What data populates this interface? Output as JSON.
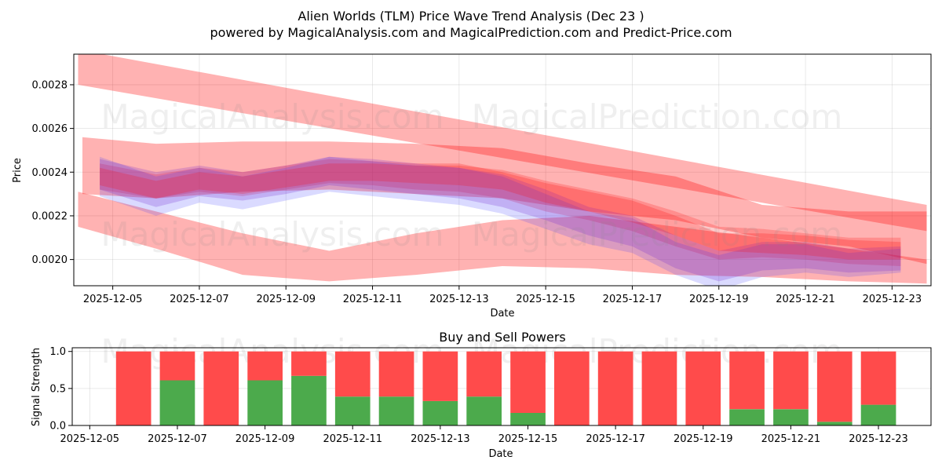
{
  "title_line1": "Alien Worlds (TLM) Price Wave Trend Analysis (Dec 23 )",
  "title_line2": "powered by MagicalAnalysis.com and MagicalPrediction.com and Predict-Price.com",
  "watermark_left": "MagicalAnalysis.com",
  "watermark_right": "MagicalPrediction.com",
  "colors": {
    "band_red": "#ff0000",
    "band_blue": "#3333ff",
    "band_purple": "#8833cc",
    "buy_green": "#4caa4c",
    "sell_red": "#ff4b4b"
  },
  "chart_data": [
    {
      "type": "area",
      "title": "Alien Worlds (TLM) Price Wave Trend Analysis (Dec 23 )",
      "xlabel": "Date",
      "ylabel": "Price",
      "xlim": [
        "2025-12-04.1",
        "2025-12-23.9"
      ],
      "ylim": [
        0.00188,
        0.00294
      ],
      "x_ticks": [
        "2025-12-05",
        "2025-12-07",
        "2025-12-09",
        "2025-12-11",
        "2025-12-13",
        "2025-12-15",
        "2025-12-17",
        "2025-12-19",
        "2025-12-21",
        "2025-12-23"
      ],
      "y_ticks": [
        0.002,
        0.0022,
        0.0024,
        0.0026,
        0.0028
      ],
      "y_tick_labels": [
        "0.0020",
        "0.0022",
        "0.0024",
        "0.0026",
        "0.0028"
      ],
      "grid": true,
      "series": [
        {
          "name": "upper trend band",
          "color": "red",
          "opacity": 0.3,
          "x": [
            4.2,
            23.8
          ],
          "upper": [
            0.00296,
            0.00225
          ],
          "lower": [
            0.0028,
            0.00213
          ]
        },
        {
          "name": "lower trend band",
          "color": "red",
          "opacity": 0.3,
          "x": [
            4.2,
            6,
            8,
            10,
            12,
            14,
            16,
            18,
            20,
            22,
            23.8
          ],
          "upper": [
            0.00231,
            0.00222,
            0.00212,
            0.00204,
            0.00212,
            0.00218,
            0.0022,
            0.00215,
            0.0021,
            0.00205,
            0.002
          ],
          "lower": [
            0.00215,
            0.00205,
            0.00193,
            0.0019,
            0.00193,
            0.00197,
            0.00196,
            0.00193,
            0.00192,
            0.0019,
            0.00189
          ]
        },
        {
          "name": "horizontal channel",
          "color": "red",
          "opacity": 0.3,
          "x": [
            4.3,
            6,
            8,
            10,
            12,
            14,
            16,
            18,
            20,
            22,
            23.8
          ],
          "upper": [
            0.00256,
            0.00253,
            0.00254,
            0.00254,
            0.00253,
            0.00251,
            0.00244,
            0.00238,
            0.00225,
            0.00222,
            0.00222
          ],
          "lower": [
            0.0023,
            0.00228,
            0.00231,
            0.00232,
            0.0023,
            0.00228,
            0.00222,
            0.00218,
            0.0021,
            0.00206,
            0.00198
          ]
        },
        {
          "name": "wave band 1",
          "color": "red",
          "opacity": 0.22,
          "x": [
            4.7,
            6,
            7,
            8,
            9,
            10,
            11,
            12,
            13,
            14,
            15,
            16,
            17,
            18,
            19,
            20,
            21,
            22,
            23.2
          ],
          "upper": [
            0.00244,
            0.00239,
            0.00242,
            0.0024,
            0.00243,
            0.00246,
            0.00245,
            0.00244,
            0.00244,
            0.0024,
            0.00235,
            0.00231,
            0.00227,
            0.0022,
            0.00212,
            0.00212,
            0.00211,
            0.00209,
            0.00208
          ],
          "lower": [
            0.00232,
            0.00228,
            0.00231,
            0.00229,
            0.00232,
            0.00235,
            0.00234,
            0.00232,
            0.00231,
            0.00228,
            0.00222,
            0.00218,
            0.00213,
            0.00206,
            0.002,
            0.00201,
            0.002,
            0.00198,
            0.00197
          ]
        },
        {
          "name": "wave band 2",
          "color": "purple",
          "opacity": 0.25,
          "x": [
            4.7,
            6,
            7,
            8,
            9,
            10,
            11,
            12,
            13,
            14,
            15,
            16,
            17,
            18,
            19,
            20,
            21,
            22,
            23.2
          ],
          "upper": [
            0.00246,
            0.0024,
            0.00243,
            0.0024,
            0.00243,
            0.00247,
            0.00246,
            0.00244,
            0.00242,
            0.00239,
            0.00232,
            0.00224,
            0.0022,
            0.00211,
            0.00204,
            0.00208,
            0.00208,
            0.00205,
            0.00206
          ],
          "lower": [
            0.00232,
            0.00224,
            0.00229,
            0.00227,
            0.0023,
            0.00234,
            0.00232,
            0.0023,
            0.00228,
            0.00224,
            0.00218,
            0.00211,
            0.00206,
            0.00196,
            0.0019,
            0.00195,
            0.00196,
            0.00194,
            0.00195
          ]
        },
        {
          "name": "wave band 3",
          "color": "blue",
          "opacity": 0.18,
          "x": [
            4.7,
            6,
            7,
            8,
            9,
            10,
            11,
            12,
            13,
            14,
            15,
            16,
            17,
            18,
            19,
            20,
            21,
            22,
            23.2
          ],
          "upper": [
            0.00247,
            0.00238,
            0.00242,
            0.00238,
            0.00242,
            0.00247,
            0.00245,
            0.00243,
            0.00242,
            0.00238,
            0.0023,
            0.00222,
            0.00219,
            0.00208,
            0.00202,
            0.00207,
            0.00207,
            0.00203,
            0.00205
          ],
          "lower": [
            0.00229,
            0.0022,
            0.00226,
            0.00223,
            0.00227,
            0.00231,
            0.00229,
            0.00227,
            0.00225,
            0.00221,
            0.00214,
            0.00207,
            0.00203,
            0.00193,
            0.00186,
            0.00192,
            0.00194,
            0.00192,
            0.00194
          ]
        },
        {
          "name": "wave band 4",
          "color": "red",
          "opacity": 0.2,
          "x": [
            4.7,
            6,
            7,
            8,
            9,
            10,
            11,
            12,
            13,
            14,
            15,
            16,
            17,
            18,
            19,
            20,
            21,
            22,
            23.2
          ],
          "upper": [
            0.00242,
            0.00236,
            0.0024,
            0.00238,
            0.00241,
            0.00244,
            0.00244,
            0.00243,
            0.00243,
            0.00241,
            0.00236,
            0.00232,
            0.00228,
            0.00222,
            0.00215,
            0.00214,
            0.00212,
            0.0021,
            0.0021
          ],
          "lower": [
            0.00234,
            0.00228,
            0.00232,
            0.0023,
            0.00233,
            0.00236,
            0.00236,
            0.00235,
            0.00234,
            0.00232,
            0.00226,
            0.00222,
            0.00217,
            0.00211,
            0.00204,
            0.00203,
            0.00202,
            0.002,
            0.002
          ]
        }
      ]
    },
    {
      "type": "bar",
      "title": "Buy and Sell Powers",
      "xlabel": "Date",
      "ylabel": "Signal Strength",
      "xlim": [
        "2025-12-04.6",
        "2025-12-24.2"
      ],
      "ylim": [
        0,
        1.05
      ],
      "x_ticks": [
        "2025-12-05",
        "2025-12-07",
        "2025-12-09",
        "2025-12-11",
        "2025-12-13",
        "2025-12-15",
        "2025-12-17",
        "2025-12-19",
        "2025-12-21",
        "2025-12-23"
      ],
      "y_ticks": [
        0.0,
        0.5,
        1.0
      ],
      "y_tick_labels": [
        "0.0",
        "0.5",
        "1.0"
      ],
      "grid": true,
      "categories": [
        "2025-12-06",
        "2025-12-07",
        "2025-12-08",
        "2025-12-09",
        "2025-12-10",
        "2025-12-11",
        "2025-12-12",
        "2025-12-13",
        "2025-12-14",
        "2025-12-15",
        "2025-12-16",
        "2025-12-17",
        "2025-12-18",
        "2025-12-19",
        "2025-12-20",
        "2025-12-21",
        "2025-12-22",
        "2025-12-23"
      ],
      "series": [
        {
          "name": "Buy",
          "color": "green",
          "values": [
            0.0,
            0.61,
            0.0,
            0.61,
            0.67,
            0.39,
            0.39,
            0.33,
            0.39,
            0.17,
            0.0,
            0.0,
            0.0,
            0.0,
            0.22,
            0.22,
            0.05,
            0.28
          ]
        },
        {
          "name": "Sell",
          "color": "red",
          "values": [
            1.0,
            0.39,
            1.0,
            0.39,
            0.33,
            0.61,
            0.61,
            0.67,
            0.61,
            0.83,
            1.0,
            1.0,
            1.0,
            1.0,
            0.78,
            0.78,
            0.95,
            0.72
          ]
        }
      ]
    }
  ]
}
